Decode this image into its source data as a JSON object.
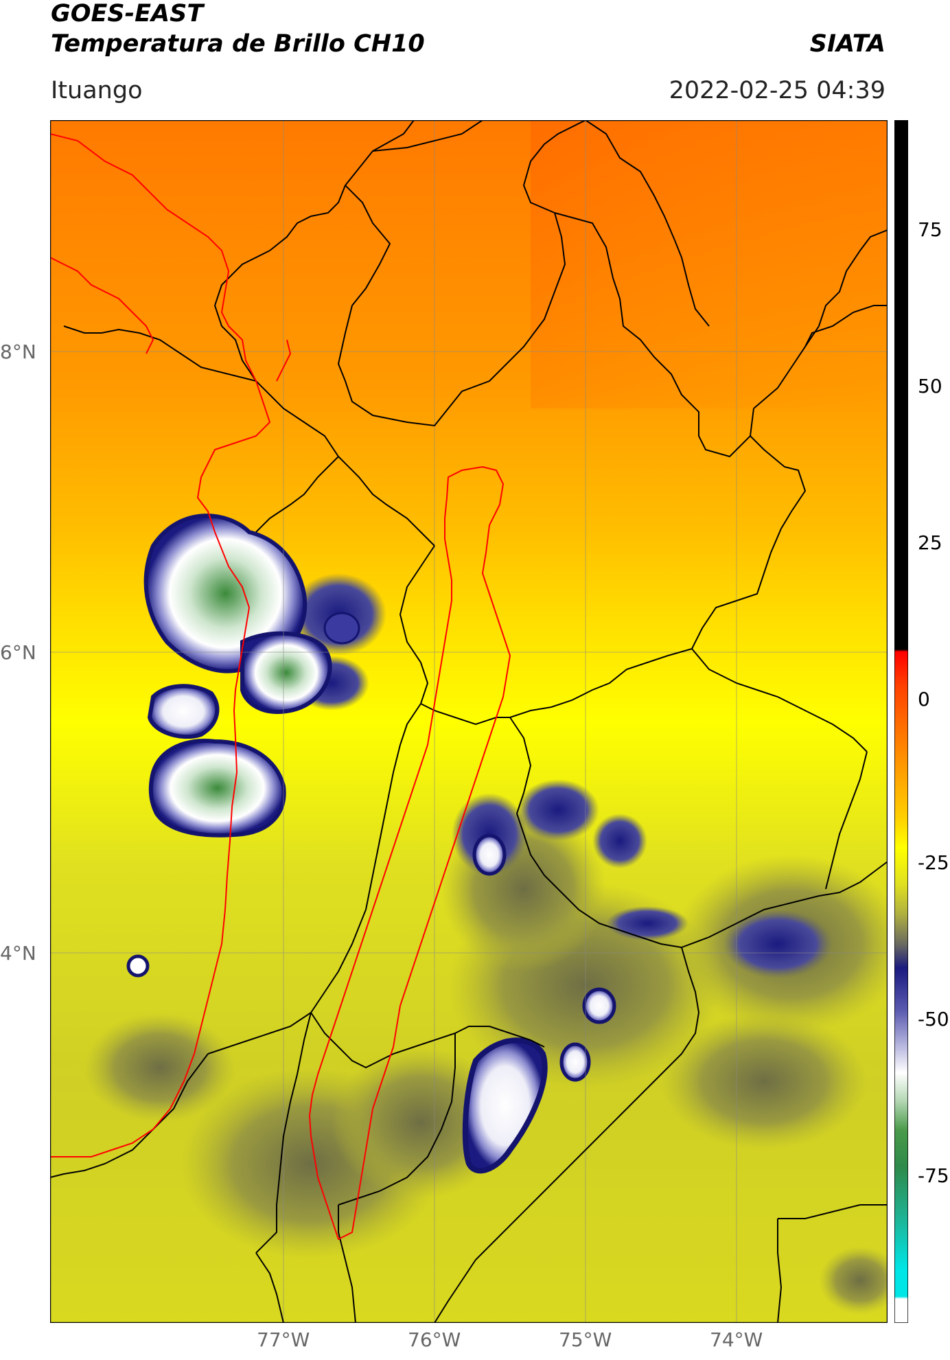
{
  "header": {
    "satellite": "GOES-EAST",
    "product": "Temperatura de Brillo CH10",
    "agency": "SIATA",
    "location": "Ituango",
    "datetime": "2022-02-25 04:39"
  },
  "map": {
    "lon_labels": [
      "77°W",
      "76°W",
      "75°W",
      "74°W"
    ],
    "lat_labels": [
      "8°N",
      "6°N",
      "4°N"
    ]
  },
  "colorbar": {
    "ticks": [
      "75",
      "50",
      "25",
      "0",
      "-25",
      "-50",
      "-75"
    ],
    "colors": {
      "black": "#000000",
      "red": "#ff0000",
      "orange": "#ff8c00",
      "yellow": "#ffff00",
      "olive": "#8a8a3a",
      "navy": "#1a1a80",
      "white": "#ffffff",
      "green": "#2e7d2e",
      "cyan": "#00e5e5"
    }
  }
}
